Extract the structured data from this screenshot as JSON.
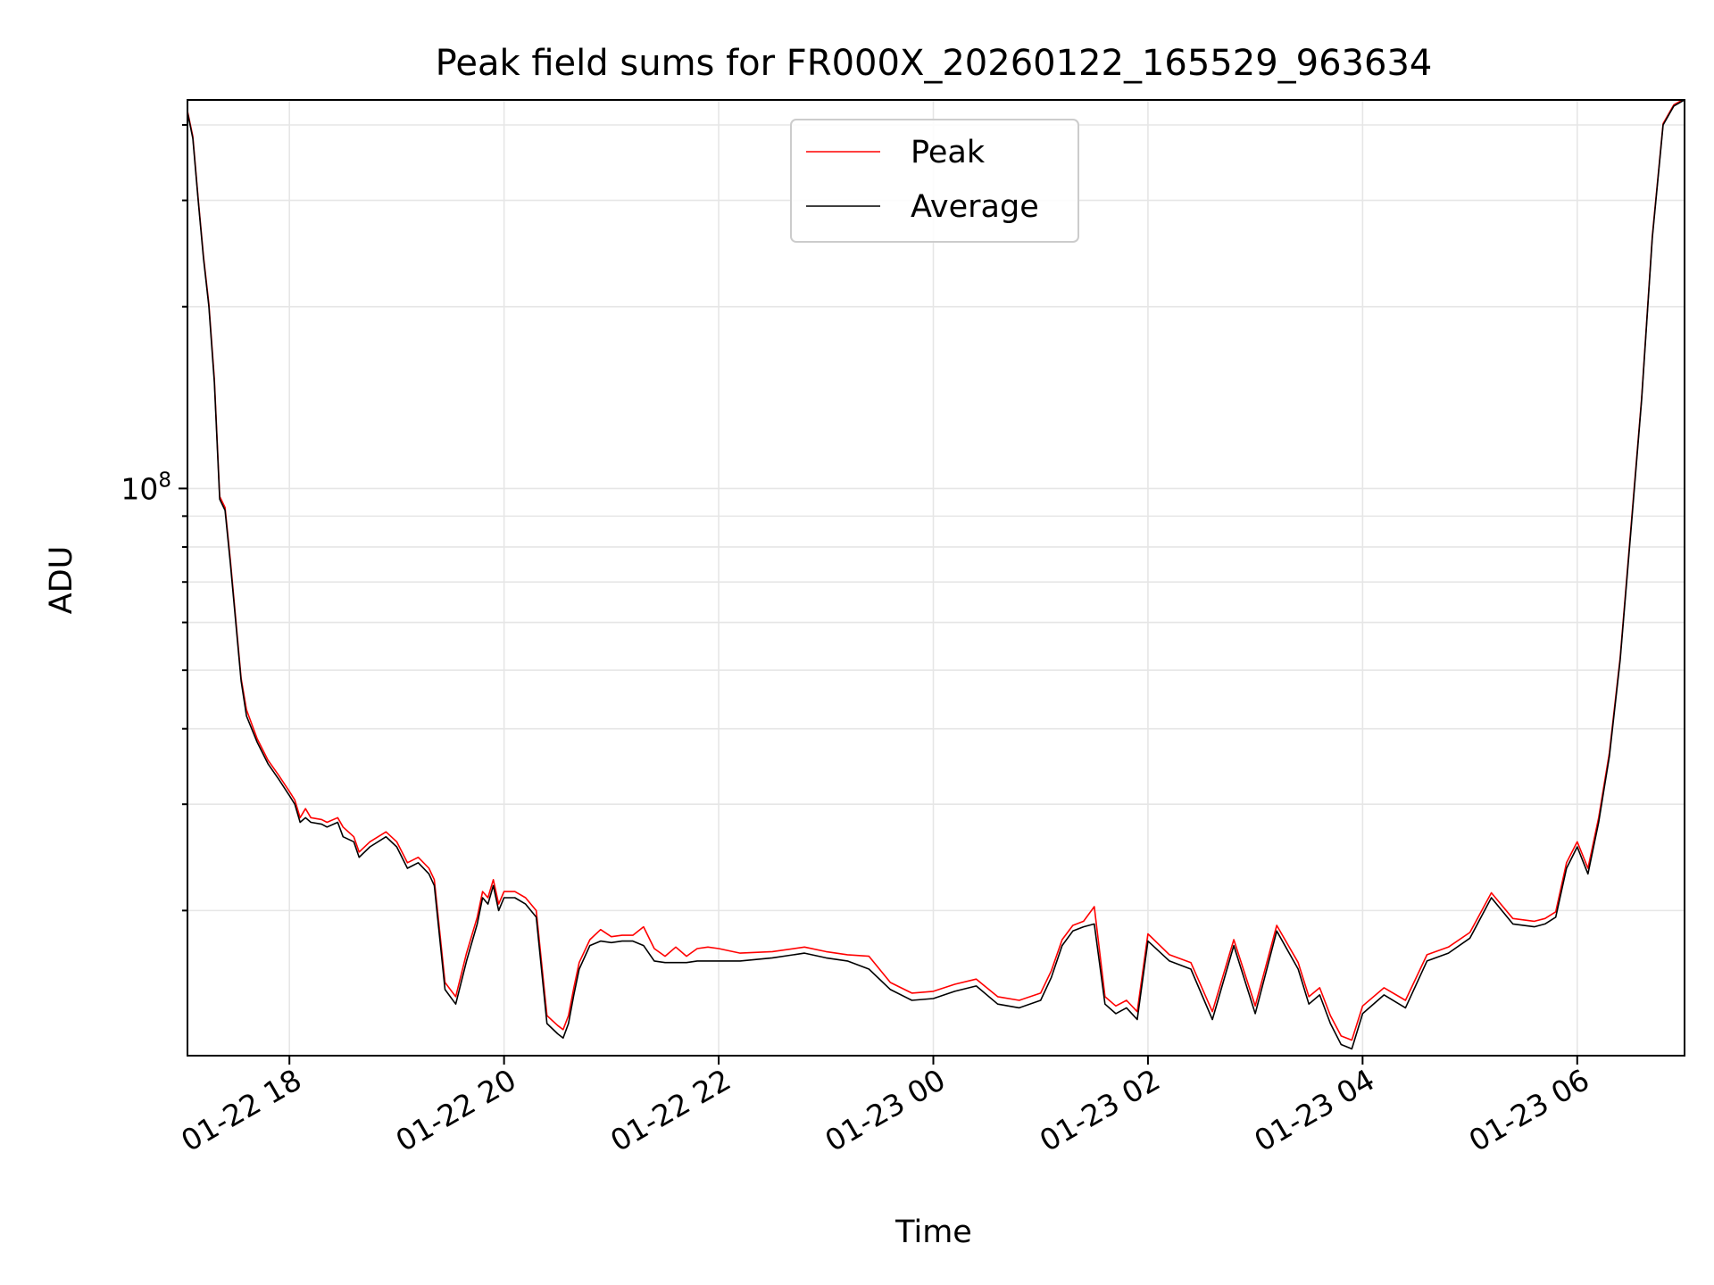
{
  "chart_data": {
    "type": "line",
    "title": "Peak field sums for FR000X_20260122_165529_963634",
    "xlabel": "Time",
    "ylabel": "ADU",
    "yscale": "log",
    "ylim": [
      11500000,
      440000000
    ],
    "xlim_hours": [
      -6.95,
      7.0
    ],
    "x_ticks": [
      {
        "hour": -6,
        "label": "01-22 18"
      },
      {
        "hour": -4,
        "label": "01-22 20"
      },
      {
        "hour": -2,
        "label": "01-22 22"
      },
      {
        "hour": 0,
        "label": "01-23 00"
      },
      {
        "hour": 2,
        "label": "01-23 02"
      },
      {
        "hour": 4,
        "label": "01-23 04"
      },
      {
        "hour": 6,
        "label": "01-23 06"
      }
    ],
    "y_ticks": [
      {
        "value": 100000000,
        "base": "10",
        "exp": "8"
      }
    ],
    "legend": {
      "position": "upper-center",
      "entries": [
        "Peak",
        "Average"
      ]
    },
    "colors": {
      "peak": "#ff0000",
      "average": "#000000"
    },
    "series": [
      {
        "name": "Average",
        "x_hours": [
          -6.95,
          -6.9,
          -6.85,
          -6.8,
          -6.75,
          -6.7,
          -6.65,
          -6.6,
          -6.55,
          -6.45,
          -6.4,
          -6.3,
          -6.2,
          -6.1,
          -6.0,
          -5.95,
          -5.9,
          -5.85,
          -5.8,
          -5.7,
          -5.65,
          -5.55,
          -5.5,
          -5.4,
          -5.35,
          -5.25,
          -5.1,
          -5.0,
          -4.9,
          -4.8,
          -4.7,
          -4.65,
          -4.55,
          -4.45,
          -4.35,
          -4.25,
          -4.2,
          -4.15,
          -4.1,
          -4.05,
          -4.0,
          -3.9,
          -3.8,
          -3.7,
          -3.6,
          -3.5,
          -3.45,
          -3.4,
          -3.35,
          -3.3,
          -3.2,
          -3.1,
          -3.0,
          -2.9,
          -2.8,
          -2.7,
          -2.6,
          -2.5,
          -2.4,
          -2.3,
          -2.2,
          -2.1,
          -2.0,
          -1.8,
          -1.5,
          -1.2,
          -1.0,
          -0.8,
          -0.6,
          -0.4,
          -0.2,
          0.0,
          0.2,
          0.4,
          0.6,
          0.8,
          1.0,
          1.1,
          1.2,
          1.3,
          1.4,
          1.5,
          1.6,
          1.7,
          1.8,
          1.9,
          2.0,
          2.2,
          2.4,
          2.6,
          2.8,
          3.0,
          3.2,
          3.4,
          3.5,
          3.6,
          3.7,
          3.8,
          3.9,
          4.0,
          4.2,
          4.4,
          4.6,
          4.8,
          5.0,
          5.2,
          5.4,
          5.6,
          5.7,
          5.8,
          5.9,
          6.0,
          6.1,
          6.2,
          6.3,
          6.4,
          6.5,
          6.6,
          6.7,
          6.8,
          6.9,
          7.0
        ],
        "values": [
          420000000,
          380000000,
          300000000,
          240000000,
          200000000,
          150000000,
          96000000,
          92000000,
          75000000,
          48000000,
          42000000,
          38000000,
          35000000,
          33000000,
          31000000,
          30000000,
          28000000,
          28500000,
          28000000,
          27800000,
          27500000,
          28000000,
          26500000,
          26000000,
          24500000,
          25500000,
          26500000,
          25500000,
          23500000,
          24000000,
          23000000,
          22000000,
          14800000,
          14000000,
          16500000,
          19000000,
          21000000,
          20500000,
          22000000,
          20000000,
          21000000,
          21000000,
          20500000,
          19500000,
          13000000,
          12500000,
          12300000,
          13000000,
          14500000,
          16000000,
          17500000,
          17800000,
          17700000,
          17800000,
          17800000,
          17500000,
          16500000,
          16400000,
          16400000,
          16400000,
          16500000,
          16500000,
          16500000,
          16500000,
          16700000,
          17000000,
          16700000,
          16500000,
          16000000,
          14800000,
          14200000,
          14300000,
          14700000,
          15000000,
          14000000,
          13800000,
          14200000,
          15500000,
          17500000,
          18500000,
          18800000,
          19000000,
          14000000,
          13500000,
          13800000,
          13200000,
          17800000,
          16500000,
          16000000,
          13200000,
          17500000,
          13500000,
          18500000,
          16000000,
          14000000,
          14500000,
          13000000,
          12000000,
          11800000,
          13500000,
          14500000,
          13800000,
          16500000,
          17000000,
          18000000,
          21000000,
          19000000,
          18800000,
          19000000,
          19500000,
          23500000,
          25500000,
          23000000,
          28000000,
          36000000,
          52000000,
          85000000,
          140000000,
          260000000,
          400000000,
          430000000,
          440000000
        ]
      },
      {
        "name": "Peak",
        "x_hours": [
          -6.95,
          -6.9,
          -6.85,
          -6.8,
          -6.75,
          -6.7,
          -6.65,
          -6.6,
          -6.55,
          -6.45,
          -6.4,
          -6.3,
          -6.2,
          -6.1,
          -6.0,
          -5.95,
          -5.9,
          -5.85,
          -5.8,
          -5.7,
          -5.65,
          -5.55,
          -5.5,
          -5.4,
          -5.35,
          -5.25,
          -5.1,
          -5.0,
          -4.9,
          -4.8,
          -4.7,
          -4.65,
          -4.55,
          -4.45,
          -4.35,
          -4.25,
          -4.2,
          -4.15,
          -4.1,
          -4.05,
          -4.0,
          -3.9,
          -3.8,
          -3.7,
          -3.6,
          -3.5,
          -3.45,
          -3.4,
          -3.35,
          -3.3,
          -3.2,
          -3.1,
          -3.0,
          -2.9,
          -2.8,
          -2.7,
          -2.6,
          -2.5,
          -2.4,
          -2.3,
          -2.2,
          -2.1,
          -2.0,
          -1.8,
          -1.5,
          -1.2,
          -1.0,
          -0.8,
          -0.6,
          -0.4,
          -0.2,
          0.0,
          0.2,
          0.4,
          0.6,
          0.8,
          1.0,
          1.1,
          1.2,
          1.3,
          1.4,
          1.5,
          1.6,
          1.7,
          1.8,
          1.9,
          2.0,
          2.2,
          2.4,
          2.6,
          2.8,
          3.0,
          3.2,
          3.4,
          3.5,
          3.6,
          3.7,
          3.8,
          3.9,
          4.0,
          4.2,
          4.4,
          4.6,
          4.8,
          5.0,
          5.2,
          5.4,
          5.6,
          5.7,
          5.8,
          5.9,
          6.0,
          6.1,
          6.2,
          6.3,
          6.4,
          6.5,
          6.6,
          6.7,
          6.8,
          6.9,
          7.0
        ],
        "values": [
          422000000,
          383000000,
          302000000,
          242000000,
          202000000,
          152000000,
          97000000,
          93000000,
          76000000,
          48500000,
          43000000,
          38500000,
          35500000,
          33500000,
          31500000,
          30500000,
          28500000,
          29500000,
          28500000,
          28300000,
          28000000,
          28500000,
          27500000,
          26500000,
          25000000,
          26000000,
          27000000,
          26000000,
          24000000,
          24500000,
          23500000,
          22500000,
          15200000,
          14400000,
          17000000,
          19500000,
          21500000,
          21000000,
          22500000,
          20500000,
          21500000,
          21500000,
          21000000,
          20000000,
          13400000,
          12900000,
          12700000,
          13400000,
          14900000,
          16400000,
          17900000,
          18600000,
          18100000,
          18200000,
          18200000,
          18800000,
          17300000,
          16800000,
          17400000,
          16800000,
          17300000,
          17400000,
          17300000,
          17000000,
          17100000,
          17400000,
          17100000,
          16900000,
          16800000,
          15200000,
          14600000,
          14700000,
          15100000,
          15400000,
          14400000,
          14200000,
          14600000,
          15900000,
          17900000,
          18900000,
          19200000,
          20300000,
          14400000,
          13900000,
          14200000,
          13600000,
          18300000,
          16900000,
          16400000,
          13600000,
          17900000,
          13900000,
          18900000,
          16400000,
          14400000,
          14900000,
          13400000,
          12400000,
          12200000,
          13900000,
          14900000,
          14200000,
          16900000,
          17400000,
          18400000,
          21400000,
          19400000,
          19200000,
          19400000,
          19900000,
          24000000,
          26000000,
          23500000,
          28500000,
          36500000,
          52500000,
          86000000,
          141000000,
          262000000,
          402000000,
          432000000,
          442000000
        ]
      }
    ],
    "annotations": []
  }
}
